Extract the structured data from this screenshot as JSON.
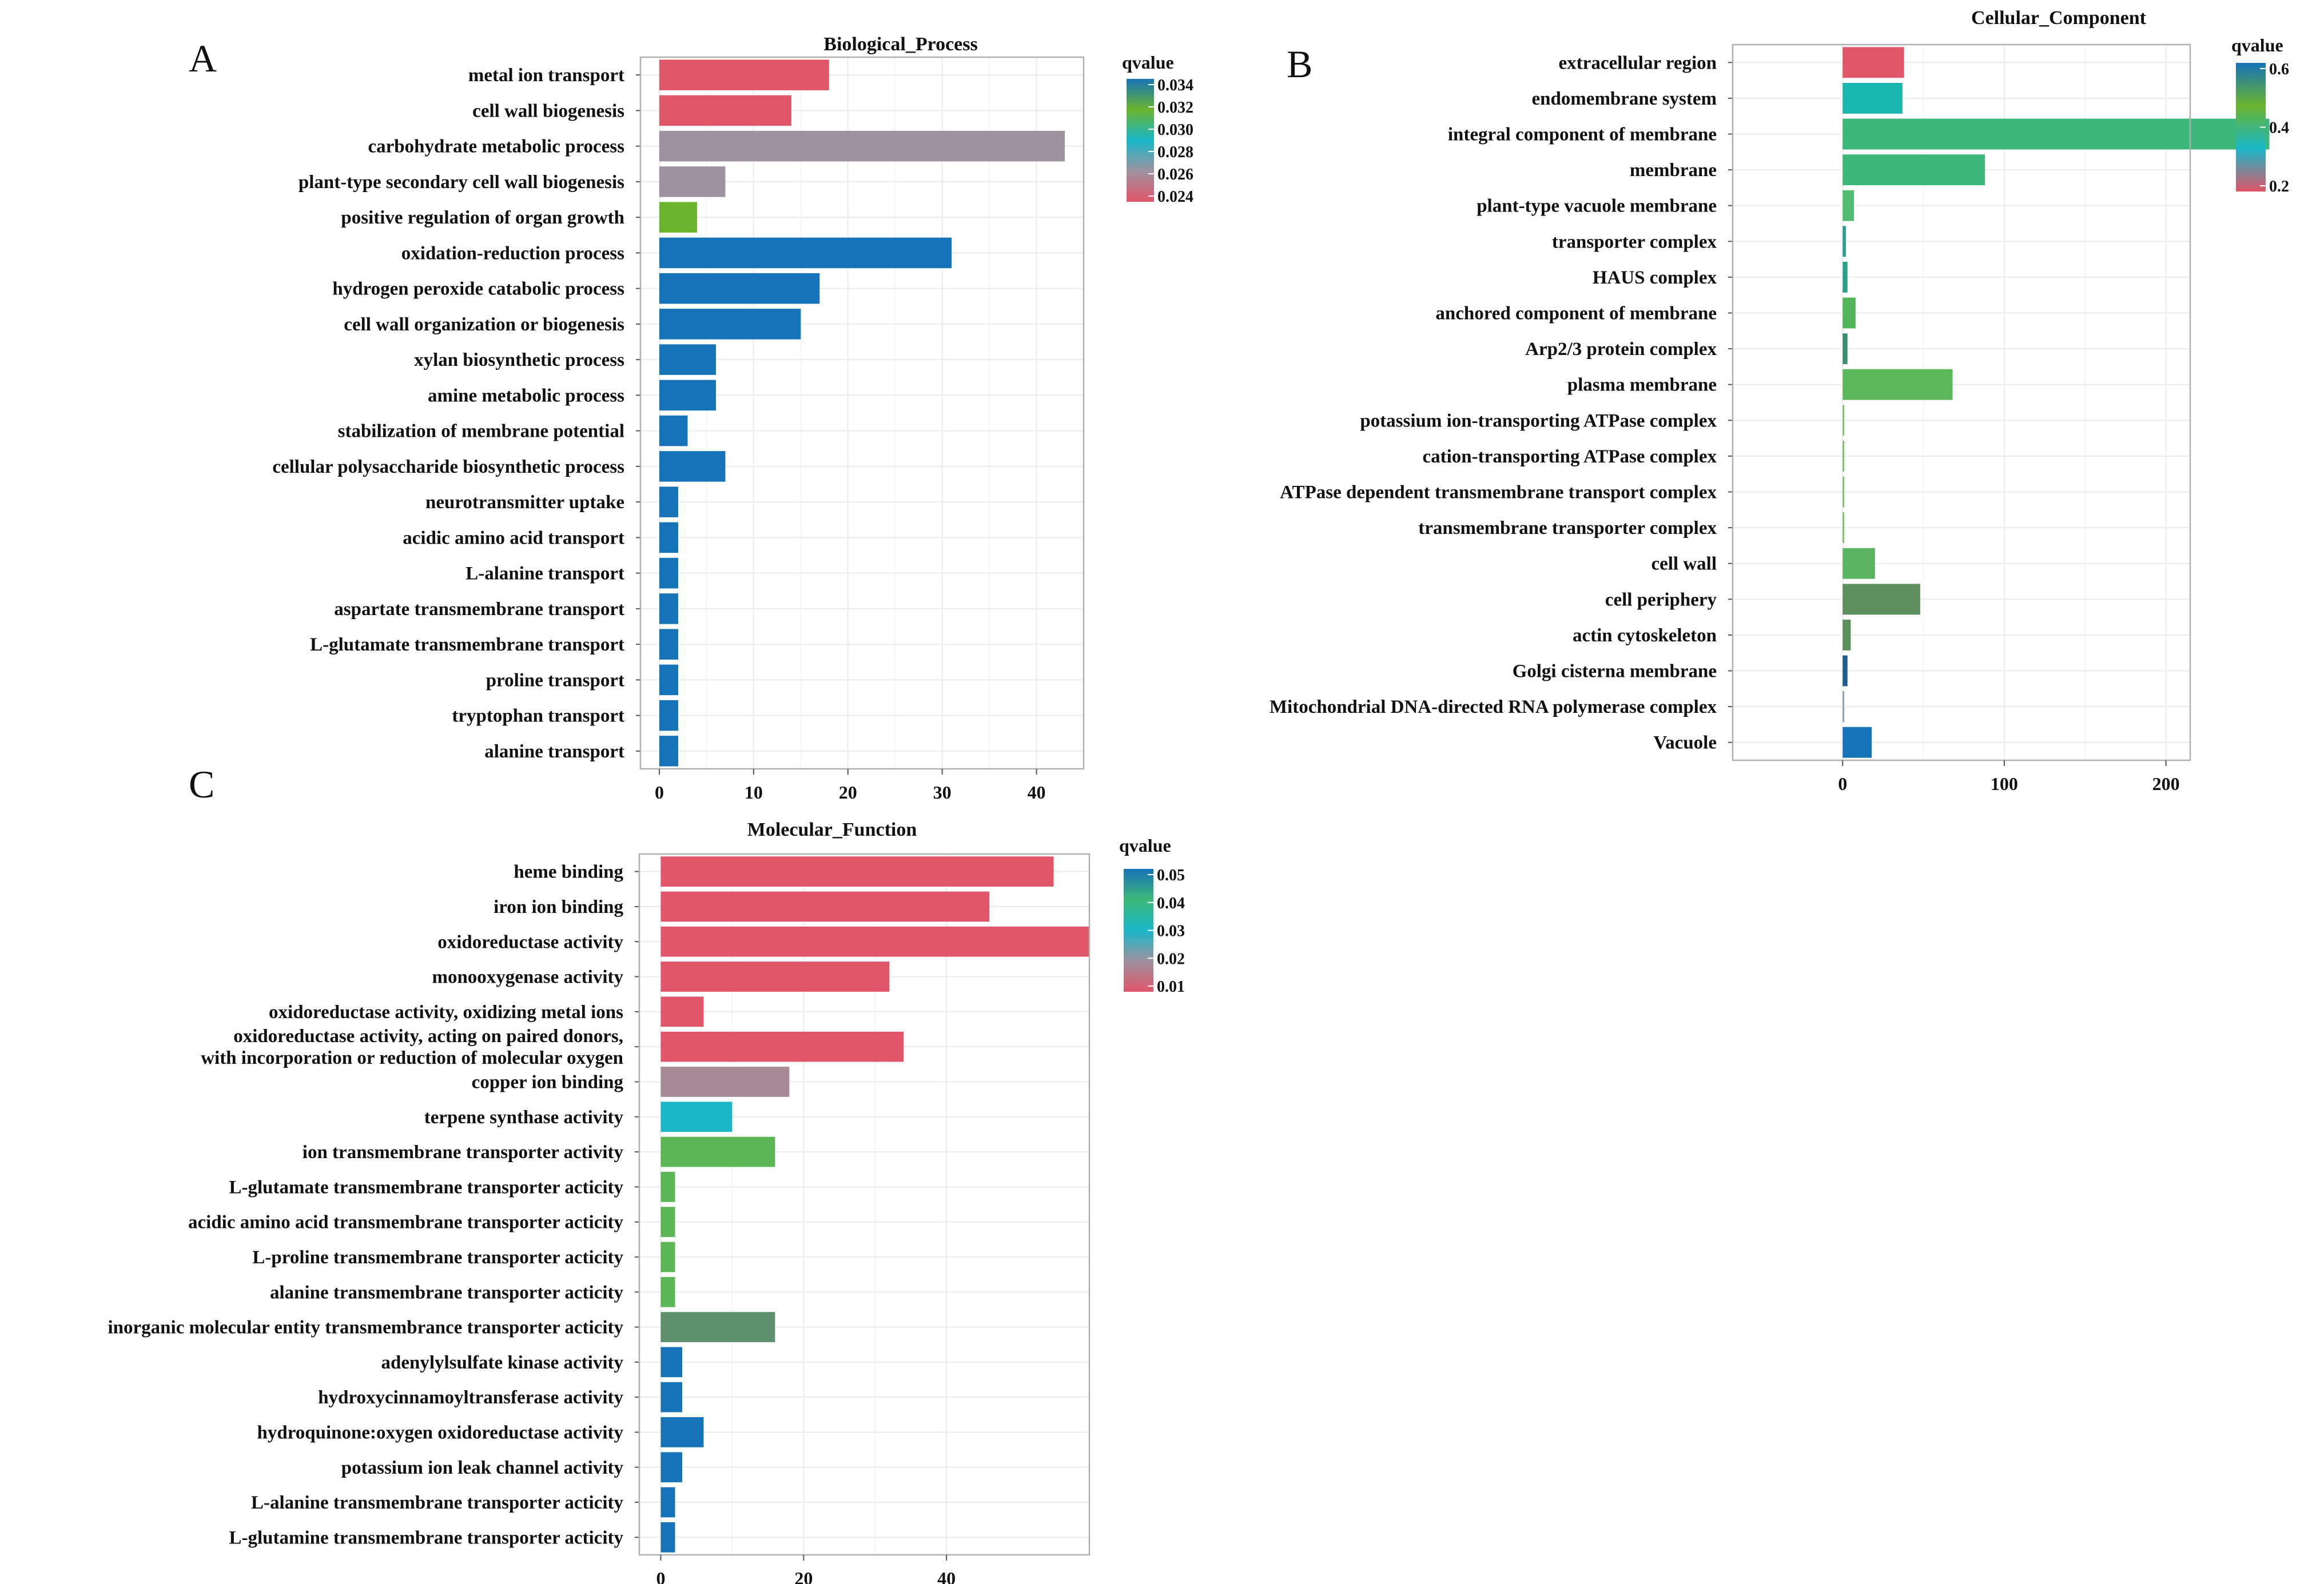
{
  "panels": [
    {
      "letter": "A",
      "chart_data": {
        "type": "bar",
        "orientation": "horizontal",
        "title": "Biological_Process",
        "xlabel": "",
        "ylabel": "",
        "xlim": [
          -2,
          45
        ],
        "xticks": [
          0,
          10,
          20,
          30,
          40
        ],
        "grid": true,
        "legend": {
          "title": "qvalue",
          "position": "right",
          "ticks": [
            "0.034",
            "0.032",
            "0.030",
            "0.028",
            "0.026",
            "0.024"
          ]
        },
        "categories": [
          "metal ion transport",
          "cell wall biogenesis",
          "carbohydrate metabolic process",
          "plant-type secondary cell wall biogenesis",
          "positive regulation of organ growth",
          "oxidation-reduction process",
          "hydrogen peroxide catabolic process",
          "cell wall organization or biogenesis",
          "xylan biosynthetic process",
          "amine metabolic process",
          "stabilization of membrane potential",
          "cellular polysaccharide biosynthetic process",
          "neurotransmitter uptake",
          "acidic amino acid transport",
          "L-alanine transport",
          "aspartate transmembrane transport",
          "L-glutamate transmembrane transport",
          "proline transport",
          "tryptophan transport",
          "alanine transport"
        ],
        "values": [
          18,
          14,
          43,
          7,
          4,
          31,
          17,
          15,
          6,
          6,
          3,
          7,
          2,
          2,
          2,
          2,
          2,
          2,
          2,
          2
        ],
        "colors": [
          "#e05568",
          "#e05568",
          "#9e92a0",
          "#9e92a0",
          "#6ab42e",
          "#1673b8",
          "#1673b8",
          "#1673b8",
          "#1673b8",
          "#1673b8",
          "#1673b8",
          "#1673b8",
          "#1673b8",
          "#1673b8",
          "#1673b8",
          "#1673b8",
          "#1673b8",
          "#1673b8",
          "#1673b8",
          "#1673b8"
        ]
      }
    },
    {
      "letter": "B",
      "chart_data": {
        "type": "bar",
        "orientation": "horizontal",
        "title": "Cellular_Component",
        "xlabel": "",
        "ylabel": "",
        "xlim": [
          -68,
          215
        ],
        "xticks": [
          0,
          100,
          200
        ],
        "grid": true,
        "legend": {
          "title": "qvalue",
          "position": "right",
          "ticks": [
            "0.6",
            "0.4",
            "0.2"
          ]
        },
        "categories": [
          "extracellular region",
          "endomembrane system",
          "integral component of membrane",
          "membrane",
          "plant-type vacuole membrane",
          "transporter complex",
          "HAUS complex",
          "anchored component of membrane",
          "Arp2/3 protein complex",
          "plasma membrane",
          "potassium ion-transporting ATPase complex",
          "cation-transporting ATPase complex",
          "ATPase dependent transmembrane transport complex",
          "transmembrane transporter complex",
          "cell wall",
          "cell periphery",
          "actin cytoskeleton",
          "Golgi cisterna membrane",
          "Mitochondrial DNA-directed RNA polymerase complex",
          "Vacuole"
        ],
        "values": [
          38,
          37,
          264,
          88,
          7,
          2,
          3,
          8,
          3,
          68,
          1,
          1,
          1,
          1,
          20,
          48,
          5,
          3,
          1,
          18
        ],
        "colors": [
          "#e05568",
          "#1ab7b0",
          "#3db87a",
          "#3db87a",
          "#52bd72",
          "#2c9f8a",
          "#2c9f8a",
          "#52b55a",
          "#3a8f70",
          "#5cb85a",
          "#7fbf6a",
          "#7fbf6a",
          "#7fbf6a",
          "#7fbf6a",
          "#5bb560",
          "#5e8f5e",
          "#5e8f5e",
          "#1e5f8f",
          "#8aa0b0",
          "#1673b8"
        ]
      }
    },
    {
      "letter": "C",
      "chart_data": {
        "type": "bar",
        "orientation": "horizontal",
        "title": "Molecular_Function",
        "xlabel": "",
        "ylabel": "",
        "xlim": [
          -3,
          60
        ],
        "xticks": [
          0,
          20,
          40
        ],
        "grid": true,
        "legend": {
          "title": "qvalue",
          "position": "right",
          "ticks": [
            "0.05",
            "0.04",
            "0.03",
            "0.02",
            "0.01"
          ]
        },
        "categories": [
          "heme binding",
          "iron ion binding",
          "oxidoreductase activity",
          "monooxygenase activity",
          "oxidoreductase activity, oxidizing metal ions",
          "oxidoreductase activity, acting on paired donors, | with incorporation or reduction of molecular oxygen",
          "copper ion binding",
          "terpene synthase activity",
          "ion transmembrane transporter activity",
          "L-glutamate transmembrane transporter acticity",
          "acidic amino acid transmembrane transporter acticity",
          "L-proline transmembrane transporter acticity",
          "alanine transmembrane transporter acticity",
          "inorganic molecular entity transmembrance transporter acticity",
          "adenylylsulfate kinase activity",
          "hydroxycinnamoyltransferase activity",
          "hydroquinone:oxygen oxidoreductase activity",
          "potassium ion leak channel activity",
          "L-alanine transmembrane transporter acticity",
          "L-glutamine transmembrane transporter acticity"
        ],
        "values": [
          55,
          46,
          60,
          32,
          6,
          34,
          18,
          10,
          16,
          2,
          2,
          2,
          2,
          16,
          3,
          3,
          6,
          3,
          2,
          2
        ],
        "colors": [
          "#e05568",
          "#e05568",
          "#e05568",
          "#e05568",
          "#e05568",
          "#e05568",
          "#a88a96",
          "#1ab7c9",
          "#5db656",
          "#5db656",
          "#5db656",
          "#5db656",
          "#5db656",
          "#5e8f6e",
          "#1673b8",
          "#1673b8",
          "#1673b8",
          "#1673b8",
          "#1673b8",
          "#1673b8"
        ]
      }
    }
  ],
  "legend_gradients": [
    [
      "#1673b8",
      "#6ab42e",
      "#1ab7c9",
      "#9e92a0",
      "#e05568"
    ],
    [
      "#1673b8",
      "#6ab42e",
      "#1ab7c9",
      "#e05568"
    ],
    [
      "#1673b8",
      "#3db87a",
      "#1ab7c9",
      "#9e92a0",
      "#e05568"
    ]
  ]
}
